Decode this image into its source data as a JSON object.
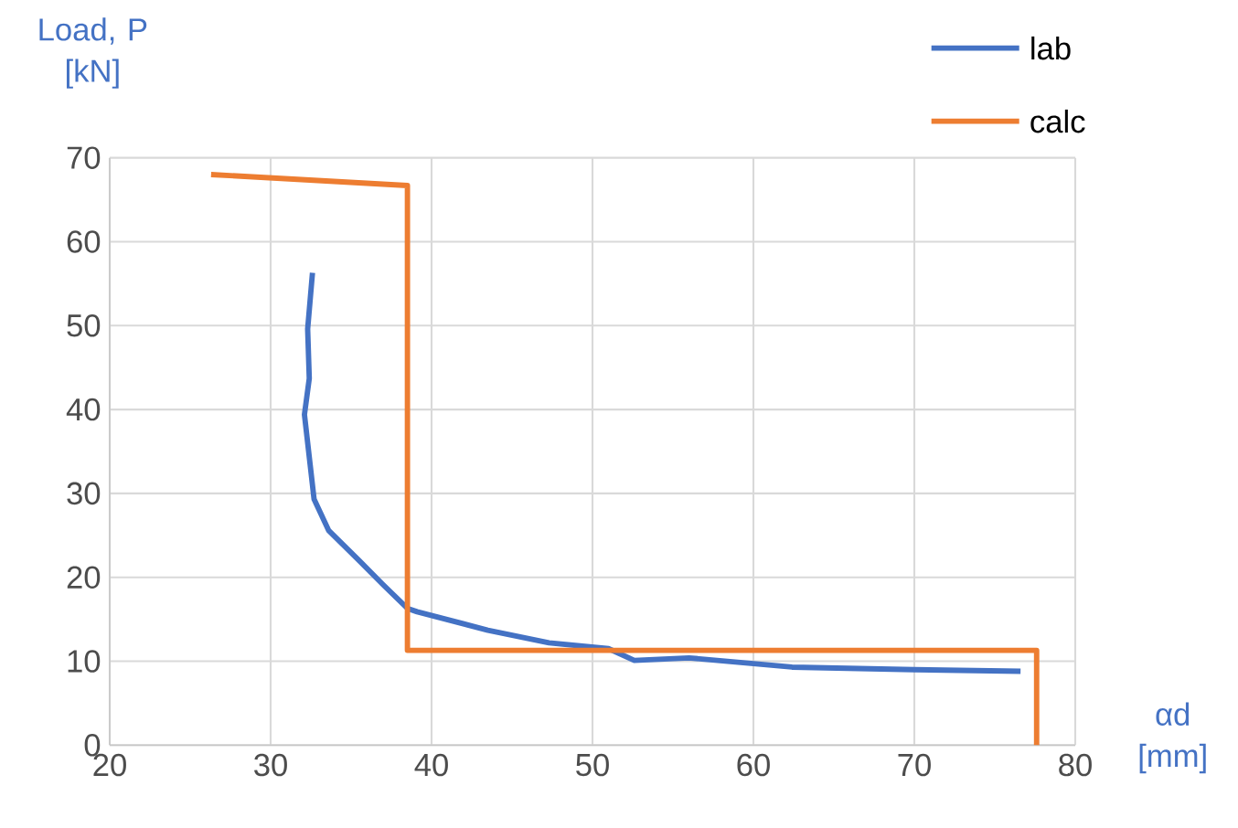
{
  "chart_data": {
    "type": "line",
    "xlabel": "αd\n[mm]",
    "ylabel": "Load, P\n[kN]",
    "xlim": [
      20,
      80
    ],
    "xticks": [
      20,
      30,
      40,
      50,
      60,
      70,
      80
    ],
    "ylim": [
      0,
      70
    ],
    "yticks": [
      0,
      10,
      20,
      30,
      40,
      50,
      60,
      70
    ],
    "grid": true,
    "legend": "top right",
    "marker": "none",
    "line_style": "solid",
    "series": [
      {
        "name": "lab",
        "color": "#4472c4",
        "x": [
          32.6,
          32.3,
          32.4,
          32.1,
          32.7,
          33.6,
          35.5,
          37.0,
          38.5,
          39.1,
          43.5,
          47.3,
          51.0,
          52.6,
          56.0,
          62.4,
          70.0,
          76.6
        ],
        "values": [
          56.3,
          49.6,
          43.7,
          39.4,
          29.3,
          25.6,
          22.0,
          19.1,
          16.3,
          15.9,
          13.7,
          12.2,
          11.5,
          10.1,
          10.4,
          9.3,
          9.0,
          8.8
        ]
      },
      {
        "name": "calc",
        "color": "#ed7d31",
        "x": [
          26.3,
          38.5,
          38.5,
          77.6,
          77.6
        ],
        "values": [
          68.0,
          66.7,
          11.3,
          11.3,
          0
        ]
      }
    ]
  }
}
